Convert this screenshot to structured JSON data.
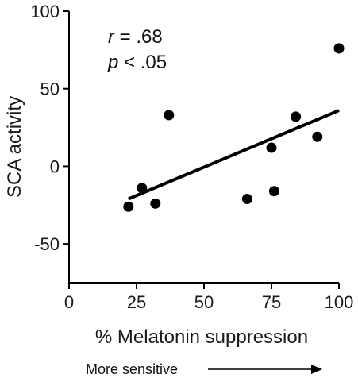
{
  "chart_data": {
    "type": "scatter",
    "title": "",
    "xlabel": "% Melatonin suppression",
    "ylabel": "SCA activity",
    "xlim": [
      0,
      100
    ],
    "ylim": [
      -75,
      100
    ],
    "x_ticks": [
      0,
      25,
      50,
      75,
      100
    ],
    "y_ticks": [
      -50,
      0,
      50,
      100
    ],
    "grid": false,
    "points": [
      {
        "x": 22,
        "y": -26
      },
      {
        "x": 27,
        "y": -14
      },
      {
        "x": 32,
        "y": -24
      },
      {
        "x": 37,
        "y": 33
      },
      {
        "x": 66,
        "y": -21
      },
      {
        "x": 75,
        "y": 12
      },
      {
        "x": 76,
        "y": -16
      },
      {
        "x": 84,
        "y": 32
      },
      {
        "x": 92,
        "y": 19
      },
      {
        "x": 100,
        "y": 76
      }
    ],
    "trendline": {
      "x": [
        22,
        100
      ],
      "y": [
        -21,
        36
      ]
    },
    "annotations": {
      "r_symbol": "r",
      "r_value": " = .68",
      "p_symbol": "p",
      "p_value": " < .05"
    },
    "footnote": "More sensitive"
  },
  "colors": {
    "points": "#000000",
    "line": "#000000",
    "axis": "#000000"
  }
}
